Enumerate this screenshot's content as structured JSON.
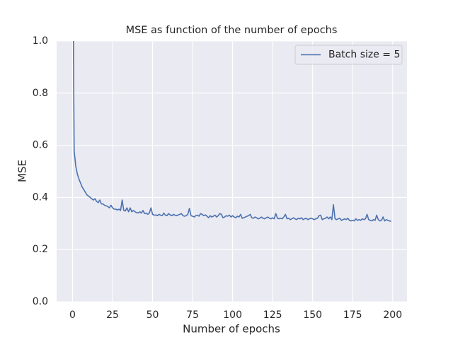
{
  "chart_data": {
    "type": "line",
    "title": "MSE as function of the number of epochs",
    "xlabel": "Number of epochs",
    "ylabel": "MSE",
    "x": [
      0,
      1,
      2,
      3,
      4,
      5,
      6,
      7,
      8,
      9,
      10,
      11,
      12,
      13,
      14,
      15,
      16,
      17,
      18,
      19,
      20,
      21,
      22,
      23,
      24,
      25,
      26,
      27,
      28,
      29,
      30,
      31,
      32,
      33,
      34,
      35,
      36,
      37,
      38,
      39,
      40,
      41,
      42,
      43,
      44,
      45,
      46,
      47,
      48,
      49,
      50,
      51,
      52,
      53,
      54,
      55,
      56,
      57,
      58,
      59,
      60,
      61,
      62,
      63,
      64,
      65,
      66,
      67,
      68,
      69,
      70,
      71,
      72,
      73,
      74,
      75,
      76,
      77,
      78,
      79,
      80,
      81,
      82,
      83,
      84,
      85,
      86,
      87,
      88,
      89,
      90,
      91,
      92,
      93,
      94,
      95,
      96,
      97,
      98,
      99,
      100,
      101,
      102,
      103,
      104,
      105,
      106,
      107,
      108,
      109,
      110,
      111,
      112,
      113,
      114,
      115,
      116,
      117,
      118,
      119,
      120,
      121,
      122,
      123,
      124,
      125,
      126,
      127,
      128,
      129,
      130,
      131,
      132,
      133,
      134,
      135,
      136,
      137,
      138,
      139,
      140,
      141,
      142,
      143,
      144,
      145,
      146,
      147,
      148,
      149,
      150,
      151,
      152,
      153,
      154,
      155,
      156,
      157,
      158,
      159,
      160,
      161,
      162,
      163,
      164,
      165,
      166,
      167,
      168,
      169,
      170,
      171,
      172,
      173,
      174,
      175,
      176,
      177,
      178,
      179,
      180,
      181,
      182,
      183,
      184,
      185,
      186,
      187,
      188,
      189,
      190,
      191,
      192,
      193,
      194,
      195,
      196,
      197,
      198,
      199
    ],
    "series": [
      {
        "name": "Batch size = 5",
        "color": "#4c72b0",
        "values": [
          1.5,
          0.58,
          0.52,
          0.49,
          0.47,
          0.455,
          0.44,
          0.43,
          0.42,
          0.41,
          0.405,
          0.4,
          0.395,
          0.39,
          0.395,
          0.385,
          0.38,
          0.39,
          0.375,
          0.375,
          0.37,
          0.368,
          0.365,
          0.36,
          0.37,
          0.36,
          0.355,
          0.355,
          0.352,
          0.355,
          0.35,
          0.39,
          0.35,
          0.348,
          0.36,
          0.345,
          0.36,
          0.345,
          0.35,
          0.345,
          0.342,
          0.34,
          0.345,
          0.34,
          0.35,
          0.338,
          0.34,
          0.335,
          0.34,
          0.36,
          0.335,
          0.332,
          0.333,
          0.33,
          0.335,
          0.332,
          0.33,
          0.34,
          0.332,
          0.33,
          0.338,
          0.333,
          0.33,
          0.335,
          0.332,
          0.33,
          0.333,
          0.335,
          0.338,
          0.33,
          0.328,
          0.33,
          0.335,
          0.358,
          0.33,
          0.328,
          0.325,
          0.33,
          0.332,
          0.328,
          0.338,
          0.335,
          0.33,
          0.333,
          0.328,
          0.322,
          0.33,
          0.325,
          0.328,
          0.332,
          0.325,
          0.33,
          0.338,
          0.335,
          0.322,
          0.325,
          0.33,
          0.328,
          0.332,
          0.325,
          0.33,
          0.325,
          0.322,
          0.328,
          0.325,
          0.335,
          0.32,
          0.322,
          0.325,
          0.328,
          0.33,
          0.335,
          0.322,
          0.32,
          0.325,
          0.322,
          0.318,
          0.32,
          0.325,
          0.32,
          0.318,
          0.322,
          0.325,
          0.32,
          0.318,
          0.322,
          0.318,
          0.338,
          0.32,
          0.318,
          0.32,
          0.318,
          0.325,
          0.335,
          0.318,
          0.32,
          0.315,
          0.318,
          0.322,
          0.318,
          0.315,
          0.32,
          0.318,
          0.322,
          0.315,
          0.318,
          0.32,
          0.315,
          0.318,
          0.32,
          0.318,
          0.315,
          0.318,
          0.32,
          0.33,
          0.332,
          0.315,
          0.318,
          0.32,
          0.325,
          0.318,
          0.325,
          0.315,
          0.372,
          0.318,
          0.315,
          0.318,
          0.32,
          0.312,
          0.315,
          0.318,
          0.315,
          0.32,
          0.312,
          0.31,
          0.312,
          0.31,
          0.318,
          0.312,
          0.315,
          0.312,
          0.318,
          0.315,
          0.318,
          0.335,
          0.315,
          0.312,
          0.31,
          0.315,
          0.312,
          0.332,
          0.315,
          0.31,
          0.312,
          0.325,
          0.31,
          0.315,
          0.312,
          0.31,
          0.308
        ]
      }
    ],
    "xlim": [
      -9.95,
      208.95
    ],
    "ylim": [
      0,
      1
    ],
    "xticks": [
      0,
      25,
      50,
      75,
      100,
      125,
      150,
      175,
      200
    ],
    "yticks": [
      {
        "value": 0,
        "label": "0.0"
      },
      0.2,
      0.4,
      0.6,
      0.8,
      {
        "value": 1,
        "label": "1.0"
      }
    ],
    "grid": true,
    "legend": "upper right"
  }
}
